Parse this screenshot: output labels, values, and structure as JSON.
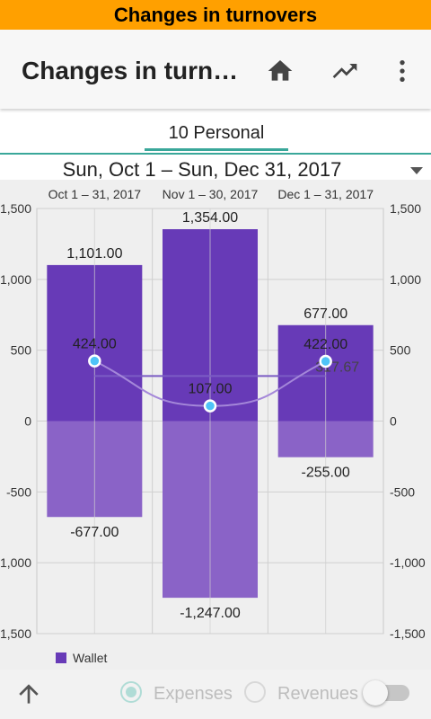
{
  "banner": {
    "title": "Changes in turnovers"
  },
  "appbar": {
    "title": "Changes in turn…",
    "icons": [
      "home-icon",
      "trending-up-icon",
      "more-vertical-icon"
    ]
  },
  "tabs": [
    {
      "label": "10 Personal",
      "selected": true
    }
  ],
  "range": {
    "label": "Sun, Oct 1 – Sun, Dec 31, 2017"
  },
  "chart_data": {
    "type": "bar",
    "categories": [
      "Oct 1 – 31, 2017",
      "Nov 1 – 30, 2017",
      "Dec 1 – 31, 2017"
    ],
    "series": [
      {
        "name": "Wallet",
        "values": [
          1101,
          1354,
          677
        ],
        "labels": [
          "1,101.00",
          "1,354.00",
          "677.00"
        ],
        "color": "#673ab7"
      },
      {
        "values": [
          -677,
          -1247,
          -255
        ],
        "labels": [
          "-677.00",
          "-1,247.00",
          "-255.00"
        ],
        "color": "#8a63c7"
      },
      {
        "type": "line",
        "values": [
          424,
          107,
          422
        ],
        "labels": [
          "424.00",
          "107.00",
          "422.00"
        ],
        "color": "#a487d9",
        "marker": "#4fc3f7"
      }
    ],
    "average": {
      "value": 317.67,
      "label": "317.67",
      "color": "#7b5cc4"
    },
    "ylim": [
      -1500,
      1500
    ],
    "yticks": [
      -1500,
      -1000,
      -500,
      0,
      500,
      1000,
      1500
    ],
    "ytick_labels": [
      "-1,500",
      "-1,000",
      "-500",
      "0",
      "500",
      "1,000",
      "1,500"
    ],
    "grid": true,
    "legend": {
      "position": "bottom-left",
      "entries": [
        {
          "label": "Wallet",
          "color": "#673ab7"
        }
      ]
    }
  },
  "bottom": {
    "up_icon": "arrow-up-icon",
    "options": [
      {
        "label": "Expenses",
        "selected": true
      },
      {
        "label": "Revenues",
        "selected": false
      }
    ],
    "toggle_on": false
  }
}
